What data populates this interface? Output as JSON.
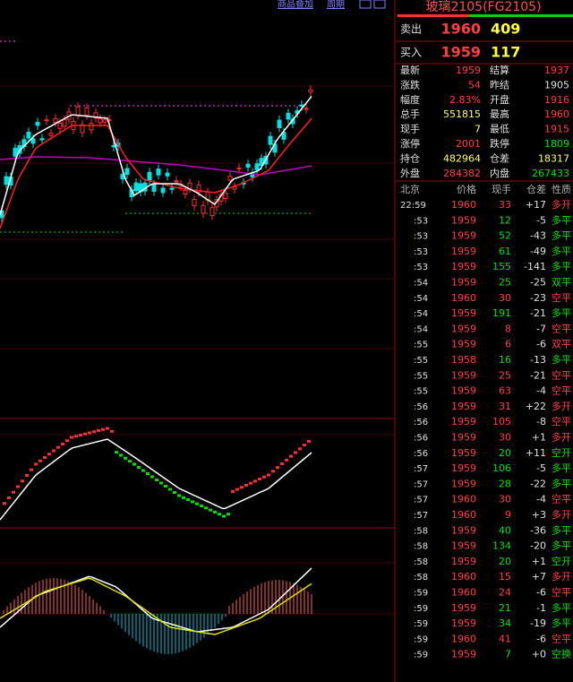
{
  "toolbar": {
    "overlay": "商品叠加",
    "period": "周期"
  },
  "quote": {
    "title": "玻璃2105(FG2105)",
    "ask": {
      "label": "卖出",
      "price": "1960",
      "volume": "409"
    },
    "bid": {
      "label": "买入",
      "price": "1959",
      "volume": "117"
    },
    "stats": [
      [
        {
          "label": "最新",
          "value": "1959",
          "color": "#ff4040"
        },
        {
          "label": "结算",
          "value": "1937",
          "color": "#ff4040"
        }
      ],
      [
        {
          "label": "涨跌",
          "value": "54",
          "color": "#ff4040"
        },
        {
          "label": "昨结",
          "value": "1905",
          "color": "#e0e0e0"
        }
      ],
      [
        {
          "label": "幅度",
          "value": "2.83%",
          "color": "#ff4040"
        },
        {
          "label": "开盘",
          "value": "1916",
          "color": "#ff4040"
        }
      ],
      [
        {
          "label": "总手",
          "value": "551815",
          "color": "#ffff66"
        },
        {
          "label": "最高",
          "value": "1960",
          "color": "#ff4040"
        }
      ],
      [
        {
          "label": "现手",
          "value": "7",
          "color": "#ffff66"
        },
        {
          "label": "最低",
          "value": "1915",
          "color": "#ff4040"
        }
      ],
      [
        {
          "label": "涨停",
          "value": "2001",
          "color": "#ff4040"
        },
        {
          "label": "跌停",
          "value": "1809",
          "color": "#00e000"
        }
      ],
      [
        {
          "label": "持仓",
          "value": "482964",
          "color": "#ffff66"
        },
        {
          "label": "仓差",
          "value": "18317",
          "color": "#ffff66"
        }
      ],
      [
        {
          "label": "外盘",
          "value": "284382",
          "color": "#ff4040"
        },
        {
          "label": "内盘",
          "value": "267433",
          "color": "#00e000"
        }
      ]
    ]
  },
  "ticks": {
    "header": [
      "北京",
      "价格",
      "现手",
      "仓差",
      "性质"
    ],
    "rows": [
      {
        "time": "22:59",
        "price": "1960",
        "qty": "33",
        "diff": "+17",
        "nature": "多开",
        "qc": "#ff4040",
        "nc": "#ff4040"
      },
      {
        "time": ":53",
        "price": "1959",
        "qty": "12",
        "diff": "-5",
        "nature": "多平",
        "qc": "#00e000",
        "nc": "#00e000"
      },
      {
        "time": ":53",
        "price": "1959",
        "qty": "52",
        "diff": "-43",
        "nature": "多平",
        "qc": "#00e000",
        "nc": "#00e000"
      },
      {
        "time": ":53",
        "price": "1959",
        "qty": "61",
        "diff": "-49",
        "nature": "多平",
        "qc": "#00e000",
        "nc": "#00e000"
      },
      {
        "time": ":53",
        "price": "1959",
        "qty": "155",
        "diff": "-141",
        "nature": "多平",
        "qc": "#00e000",
        "nc": "#00e000"
      },
      {
        "time": ":54",
        "price": "1959",
        "qty": "25",
        "diff": "-25",
        "nature": "双平",
        "qc": "#00e000",
        "nc": "#00e000"
      },
      {
        "time": ":54",
        "price": "1960",
        "qty": "30",
        "diff": "-23",
        "nature": "空平",
        "qc": "#ff4040",
        "nc": "#ff4040"
      },
      {
        "time": ":54",
        "price": "1959",
        "qty": "191",
        "diff": "-21",
        "nature": "多平",
        "qc": "#00e000",
        "nc": "#00e000"
      },
      {
        "time": ":54",
        "price": "1959",
        "qty": "8",
        "diff": "-7",
        "nature": "空平",
        "qc": "#ff4040",
        "nc": "#ff4040"
      },
      {
        "time": ":55",
        "price": "1959",
        "qty": "6",
        "diff": "-6",
        "nature": "双平",
        "qc": "#ff4040",
        "nc": "#ff4040"
      },
      {
        "time": ":55",
        "price": "1958",
        "qty": "16",
        "diff": "-13",
        "nature": "多平",
        "qc": "#00e000",
        "nc": "#00e000"
      },
      {
        "time": ":55",
        "price": "1959",
        "qty": "25",
        "diff": "-21",
        "nature": "空平",
        "qc": "#ff4040",
        "nc": "#ff4040"
      },
      {
        "time": ":55",
        "price": "1959",
        "qty": "63",
        "diff": "-4",
        "nature": "空平",
        "qc": "#ff4040",
        "nc": "#ff4040"
      },
      {
        "time": ":56",
        "price": "1959",
        "qty": "31",
        "diff": "+22",
        "nature": "多开",
        "qc": "#ff4040",
        "nc": "#ff4040"
      },
      {
        "time": ":56",
        "price": "1959",
        "qty": "105",
        "diff": "-8",
        "nature": "空平",
        "qc": "#ff4040",
        "nc": "#ff4040"
      },
      {
        "time": ":56",
        "price": "1959",
        "qty": "30",
        "diff": "+1",
        "nature": "多开",
        "qc": "#ff4040",
        "nc": "#ff4040"
      },
      {
        "time": ":56",
        "price": "1959",
        "qty": "20",
        "diff": "+11",
        "nature": "空开",
        "qc": "#00e000",
        "nc": "#00e000"
      },
      {
        "time": ":57",
        "price": "1959",
        "qty": "106",
        "diff": "-5",
        "nature": "多平",
        "qc": "#00e000",
        "nc": "#00e000"
      },
      {
        "time": ":57",
        "price": "1959",
        "qty": "28",
        "diff": "-22",
        "nature": "多平",
        "qc": "#00e000",
        "nc": "#00e000"
      },
      {
        "time": ":57",
        "price": "1960",
        "qty": "30",
        "diff": "-4",
        "nature": "空平",
        "qc": "#ff4040",
        "nc": "#ff4040"
      },
      {
        "time": ":57",
        "price": "1960",
        "qty": "9",
        "diff": "+3",
        "nature": "多开",
        "qc": "#ff4040",
        "nc": "#ff4040"
      },
      {
        "time": ":58",
        "price": "1959",
        "qty": "40",
        "diff": "-36",
        "nature": "多平",
        "qc": "#00e000",
        "nc": "#00e000"
      },
      {
        "time": ":58",
        "price": "1959",
        "qty": "134",
        "diff": "-20",
        "nature": "多平",
        "qc": "#00e000",
        "nc": "#00e000"
      },
      {
        "time": ":58",
        "price": "1959",
        "qty": "20",
        "diff": "+1",
        "nature": "空开",
        "qc": "#00e000",
        "nc": "#00e000"
      },
      {
        "time": ":58",
        "price": "1960",
        "qty": "15",
        "diff": "+7",
        "nature": "多开",
        "qc": "#ff4040",
        "nc": "#ff4040"
      },
      {
        "time": ":59",
        "price": "1960",
        "qty": "24",
        "diff": "-6",
        "nature": "空平",
        "qc": "#ff4040",
        "nc": "#ff4040"
      },
      {
        "time": ":59",
        "price": "1959",
        "qty": "21",
        "diff": "-1",
        "nature": "多平",
        "qc": "#00e000",
        "nc": "#00e000"
      },
      {
        "time": ":59",
        "price": "1959",
        "qty": "34",
        "diff": "-19",
        "nature": "多平",
        "qc": "#00e000",
        "nc": "#00e000"
      },
      {
        "time": ":59",
        "price": "1960",
        "qty": "41",
        "diff": "-6",
        "nature": "空平",
        "qc": "#ff4040",
        "nc": "#ff4040"
      },
      {
        "time": ":59",
        "price": "1959",
        "qty": "7",
        "diff": "+0",
        "nature": "空换",
        "qc": "#00e000",
        "nc": "#00e000"
      }
    ]
  }
}
